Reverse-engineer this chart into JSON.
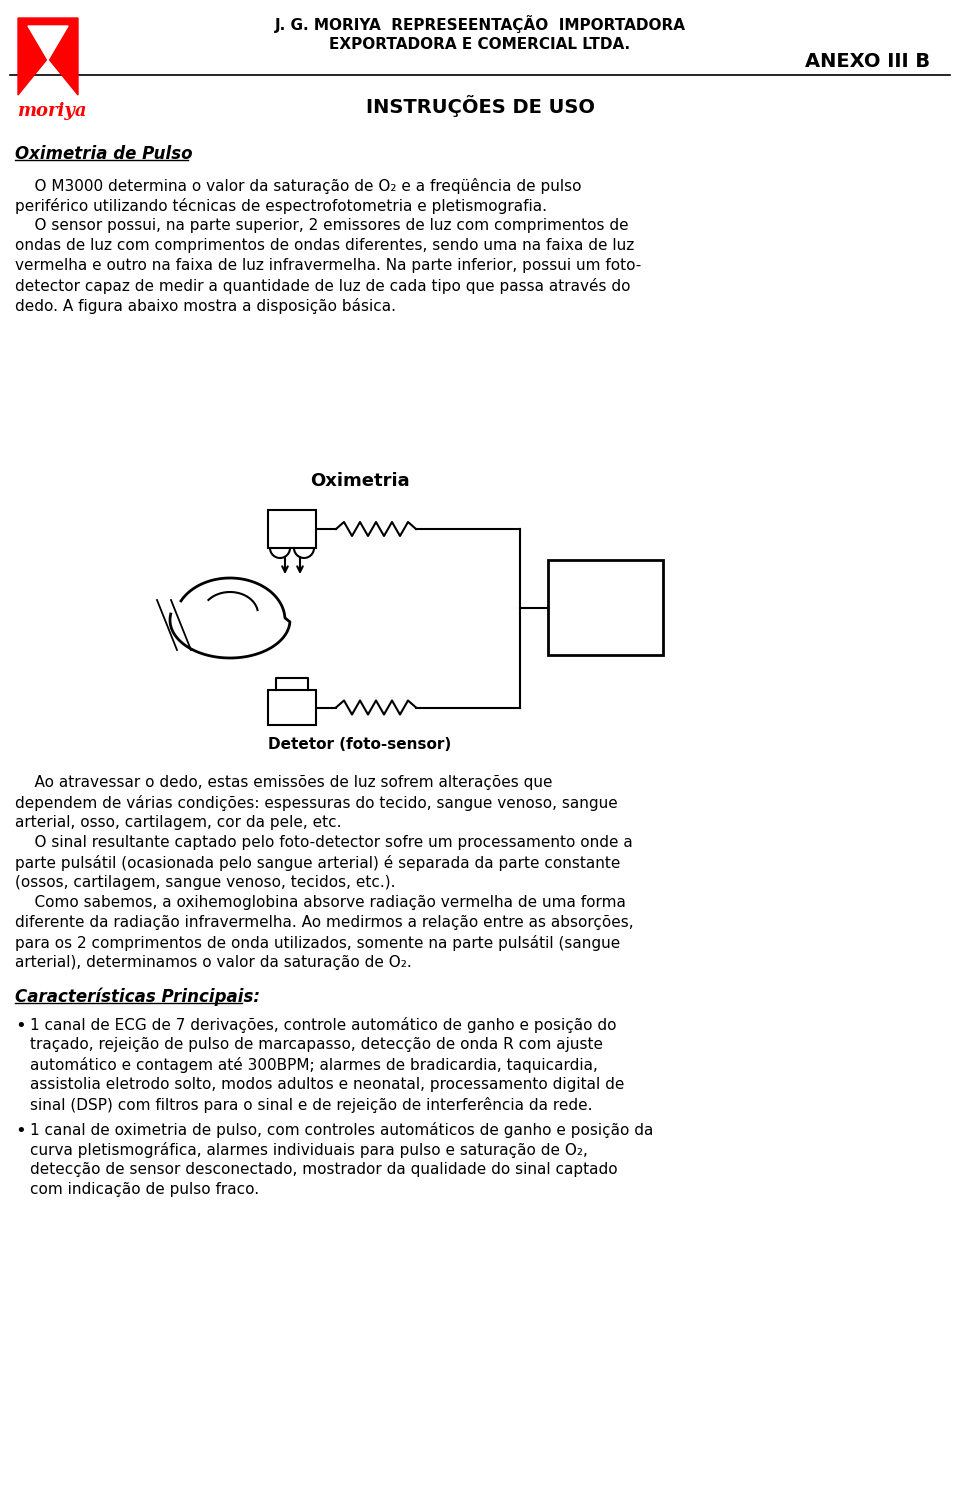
{
  "header_line1": "J. G. MORIYA  REPRESEENTAÇÃO  IMPORTADORA",
  "header_line2": "EXPORTADORA E COMERCIAL LTDA.",
  "annex": "ANEXO III B",
  "title": "INSTRUÇÕES DE USO",
  "section1_title": "Oximetria de Pulso",
  "diagram_title": "Oximetria",
  "diagram_label": "Detetor (foto-sensor)",
  "section2_title": "Características Principais:",
  "bg_color": "#ffffff",
  "text_color": "#000000"
}
